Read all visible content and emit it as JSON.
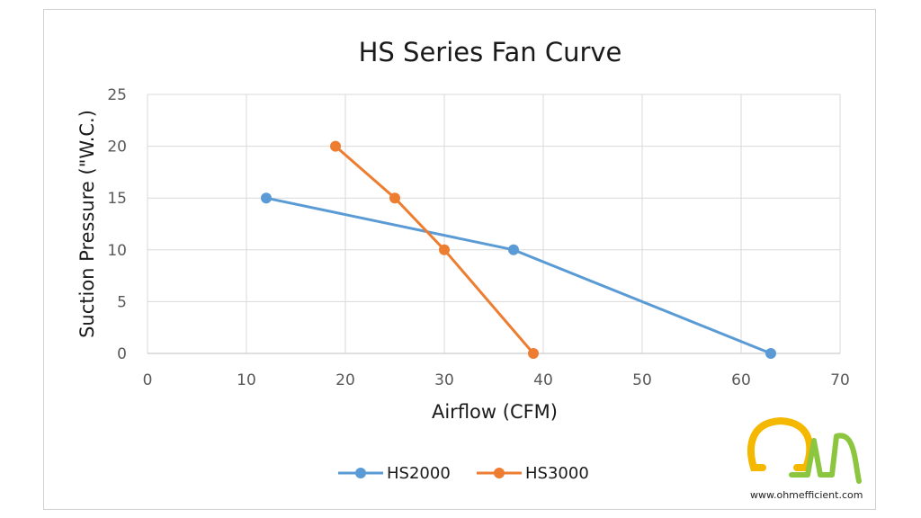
{
  "chart_data": {
    "type": "line",
    "title": "HS Series Fan Curve",
    "xlabel": "Airflow (CFM)",
    "ylabel": "Suction Pressure (\"W.C.)",
    "xlim": [
      0,
      70
    ],
    "ylim": [
      0,
      25
    ],
    "xticks": [
      0,
      10,
      20,
      30,
      40,
      50,
      60,
      70
    ],
    "yticks": [
      0,
      5,
      10,
      15,
      20,
      25
    ],
    "grid": true,
    "legend_position": "bottom",
    "series": [
      {
        "name": "HS2000",
        "color": "#5b9bd5",
        "points": [
          [
            12,
            15
          ],
          [
            37,
            10
          ],
          [
            63,
            0
          ]
        ]
      },
      {
        "name": "HS3000",
        "color": "#ed7d31",
        "points": [
          [
            19,
            20
          ],
          [
            25,
            15
          ],
          [
            30,
            10
          ],
          [
            39,
            0
          ]
        ]
      }
    ]
  },
  "logo": {
    "text": "Ωm",
    "url": "www.ohmefficient.com",
    "colors": [
      "#f5b800",
      "#8cc63f"
    ]
  }
}
